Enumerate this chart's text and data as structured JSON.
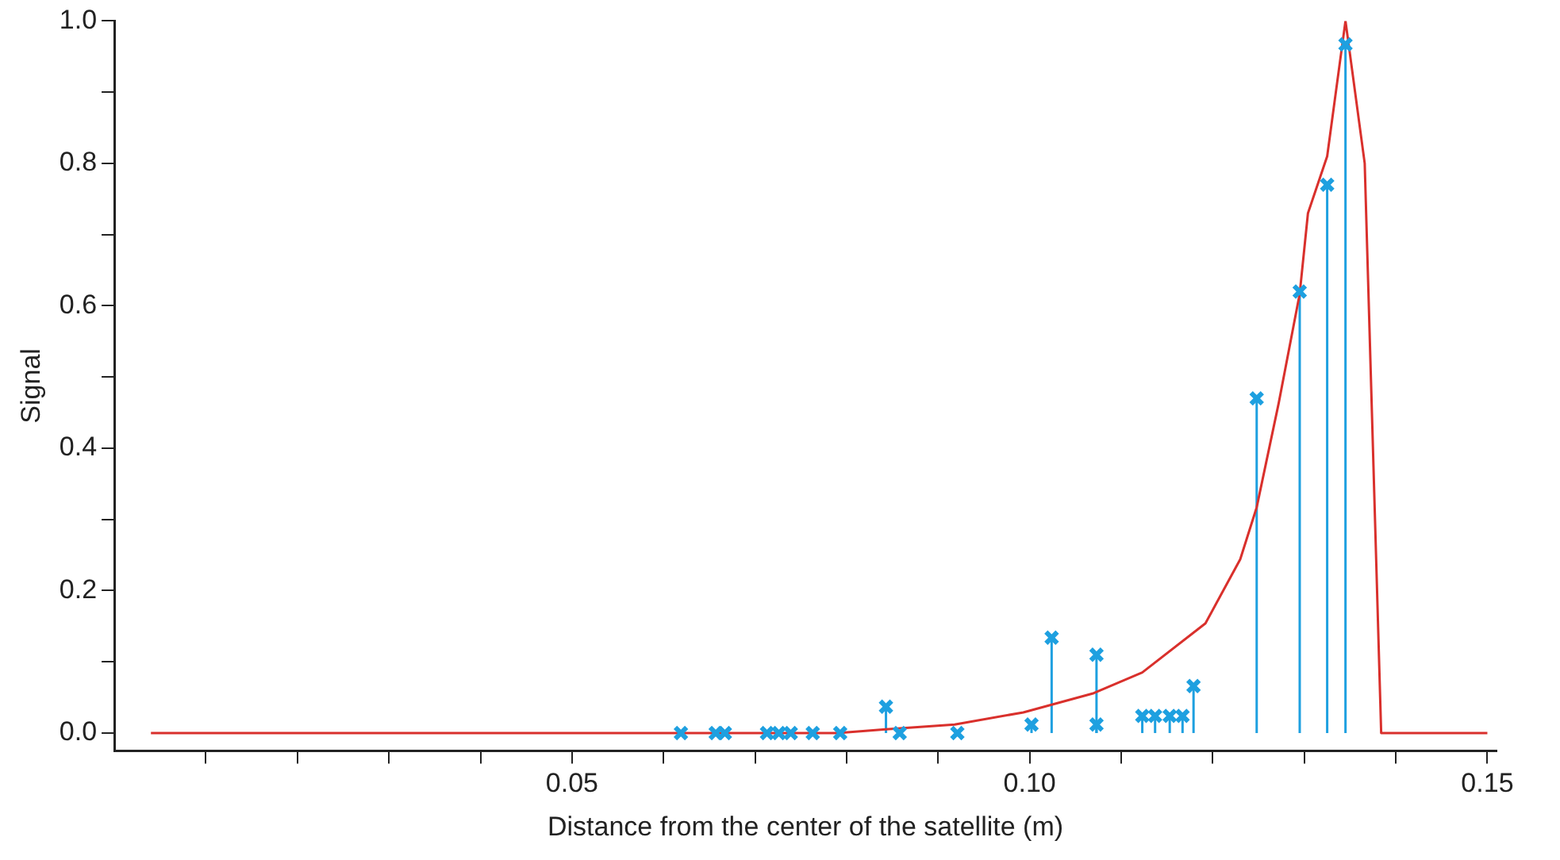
{
  "chart_data": {
    "type": "scatter",
    "xlabel": "Distance from the center of the satellite (m)",
    "ylabel": "Signal",
    "xlim": [
      0,
      0.151
    ],
    "ylim": [
      -0.025,
      1.0
    ],
    "xticks": [
      {
        "value": 0.01,
        "label": null
      },
      {
        "value": 0.02,
        "label": null
      },
      {
        "value": 0.03,
        "label": null
      },
      {
        "value": 0.04,
        "label": null
      },
      {
        "value": 0.05,
        "label": "0.05"
      },
      {
        "value": 0.06,
        "label": null
      },
      {
        "value": 0.07,
        "label": null
      },
      {
        "value": 0.08,
        "label": null
      },
      {
        "value": 0.09,
        "label": null
      },
      {
        "value": 0.1,
        "label": "0.10"
      },
      {
        "value": 0.11,
        "label": null
      },
      {
        "value": 0.12,
        "label": null
      },
      {
        "value": 0.13,
        "label": null
      },
      {
        "value": 0.14,
        "label": null
      },
      {
        "value": 0.15,
        "label": "0.15"
      }
    ],
    "yticks": [
      {
        "value": 0,
        "label": "0.0"
      },
      {
        "value": 0.1,
        "label": null
      },
      {
        "value": 0.2,
        "label": "0.2"
      },
      {
        "value": 0.3,
        "label": null
      },
      {
        "value": 0.4,
        "label": "0.4"
      },
      {
        "value": 0.5,
        "label": null
      },
      {
        "value": 0.6,
        "label": "0.6"
      },
      {
        "value": 0.7,
        "label": null
      },
      {
        "value": 0.8,
        "label": "0.8"
      },
      {
        "value": 0.9,
        "label": null
      },
      {
        "value": 1.0,
        "label": "1.0"
      }
    ],
    "grid": false,
    "legend": false,
    "series": [
      {
        "type": "line",
        "color": "#d9302c",
        "marker": "none",
        "line_style": "solid",
        "x": [
          0.004,
          0.075,
          0.079,
          0.084,
          0.0918,
          0.0993,
          0.107,
          0.1123,
          0.1192,
          0.123,
          0.1248,
          0.1272,
          0.1295,
          0.1304,
          0.1325,
          0.1345,
          0.1366,
          0.1384,
          0.15
        ],
        "values": [
          0,
          0,
          0,
          0.005,
          0.012,
          0.029,
          0.056,
          0.085,
          0.154,
          0.244,
          0.317,
          0.463,
          0.617,
          0.73,
          0.81,
          1.0,
          0.8,
          0,
          0
        ]
      },
      {
        "type": "lollipop",
        "color": "#1ea0e0",
        "marker": "cross",
        "x": [
          0.0619,
          0.0657,
          0.0667,
          0.0713,
          0.0726,
          0.0739,
          0.0763,
          0.0793,
          0.0843,
          0.0858,
          0.0921,
          0.1002,
          0.1024,
          0.1073,
          0.1073,
          0.1123,
          0.1137,
          0.1153,
          0.1167,
          0.1179,
          0.1248,
          0.1295,
          0.1325,
          0.1345
        ],
        "values": [
          0,
          0,
          0,
          0,
          0,
          0,
          0,
          0,
          0.037,
          0,
          0,
          0.012,
          0.134,
          0.11,
          0.012,
          0.024,
          0.024,
          0.024,
          0.024,
          0.066,
          0.47,
          0.62,
          0.77,
          0.967
        ]
      }
    ]
  }
}
